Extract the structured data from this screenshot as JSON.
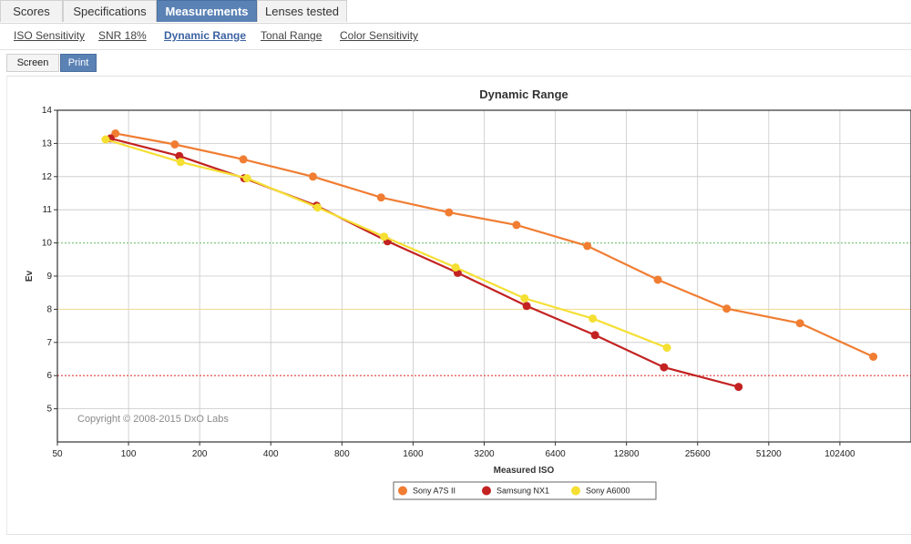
{
  "tabs": [
    {
      "label": "Scores",
      "active": false
    },
    {
      "label": "Specifications",
      "active": false
    },
    {
      "label": "Measurements",
      "active": true
    },
    {
      "label": "Lenses tested",
      "active": false
    }
  ],
  "subnav": [
    {
      "label": "ISO Sensitivity",
      "active": false
    },
    {
      "label": "SNR 18%",
      "active": false
    },
    {
      "label": "Dynamic Range",
      "active": true
    },
    {
      "label": "Tonal Range",
      "active": false
    },
    {
      "label": "Color Sensitivity",
      "active": false
    }
  ],
  "toggles": [
    {
      "label": "Screen",
      "active": false
    },
    {
      "label": "Print",
      "active": true
    }
  ],
  "chart_data": {
    "type": "line",
    "title": "Dynamic Range",
    "xlabel": "Measured ISO",
    "ylabel": "Ev",
    "x_scale": "log2",
    "x_ticks": [
      50,
      100,
      200,
      400,
      800,
      1600,
      3200,
      6400,
      12800,
      25600,
      51200,
      102400
    ],
    "x_tick_labels": [
      "50",
      "100",
      "200",
      "400",
      "800",
      "1600",
      "3200",
      "6400",
      "12800",
      "25600",
      "51200",
      "102400"
    ],
    "xlim": [
      50,
      204800
    ],
    "ylim": [
      4,
      14
    ],
    "y_ticks": [
      5,
      6,
      7,
      8,
      9,
      10,
      11,
      12,
      13,
      14
    ],
    "y_tick_labels": [
      "5",
      "6",
      "7",
      "8",
      "9",
      "10",
      "11",
      "12",
      "13",
      "14"
    ],
    "grid": true,
    "reference_lines": [
      {
        "y": 10,
        "color": "#7fc97f",
        "style": "dotted"
      },
      {
        "y": 8,
        "color": "#f1d98f",
        "style": "solid"
      },
      {
        "y": 6,
        "color": "#e03c3c",
        "style": "dotted"
      }
    ],
    "annotation": "Copyright © 2008-2015 DxO Labs",
    "legend_position": "bottom-center",
    "series": [
      {
        "name": "Sony A7S II",
        "color": "#f07d32",
        "x": [
          88,
          157,
          306,
          603,
          1172,
          2270,
          4380,
          8740,
          17380,
          34000,
          69400,
          141800
        ],
        "y": [
          13.3,
          12.97,
          12.52,
          12.0,
          11.37,
          10.92,
          10.54,
          9.91,
          8.89,
          8.02,
          7.58,
          6.57
        ]
      },
      {
        "name": "Samsung NX1",
        "color": "#c32222",
        "x": [
          84,
          164,
          309,
          625,
          1247,
          2472,
          4840,
          9430,
          18460,
          38150
        ],
        "y": [
          13.15,
          12.62,
          11.95,
          11.12,
          10.05,
          9.1,
          8.1,
          7.22,
          6.25,
          5.66
        ]
      },
      {
        "name": "Sony A6000",
        "color": "#f5df33",
        "x": [
          80,
          166,
          317,
          631,
          1206,
          2422,
          4740,
          9210,
          18990
        ],
        "y": [
          13.12,
          12.44,
          11.95,
          11.07,
          10.19,
          9.26,
          8.33,
          7.72,
          6.84
        ]
      }
    ]
  }
}
